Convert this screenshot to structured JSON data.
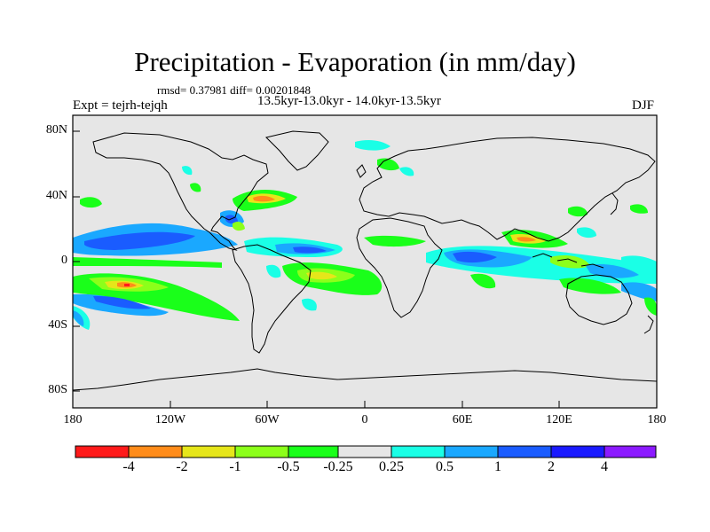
{
  "title": "Precipitation - Evaporation (in mm/day)",
  "stats": "rmsd= 0.37981  diff= 0.00201848",
  "experiment": "Expt = tejrh-tejqh",
  "period": "13.5kyr-13.0kyr - 14.0kyr-13.5kyr",
  "season": "DJF",
  "lat_ticks": [
    "80N",
    "40N",
    "0",
    "40S",
    "80S"
  ],
  "lon_ticks": [
    "180",
    "120W",
    "60W",
    "0",
    "60E",
    "120E",
    "180"
  ],
  "colorbar": {
    "labels": [
      "-4",
      "-2",
      "-1",
      "-0.5",
      "-0.25",
      "0.25",
      "0.5",
      "1",
      "2",
      "4"
    ],
    "colors": [
      "#ff1a1a",
      "#ff8c1a",
      "#e6e61a",
      "#8cff1a",
      "#1aff1a",
      "#e6e6e6",
      "#1affe6",
      "#1aa8ff",
      "#1a5cff",
      "#1a1aff",
      "#8c1aff"
    ]
  }
}
